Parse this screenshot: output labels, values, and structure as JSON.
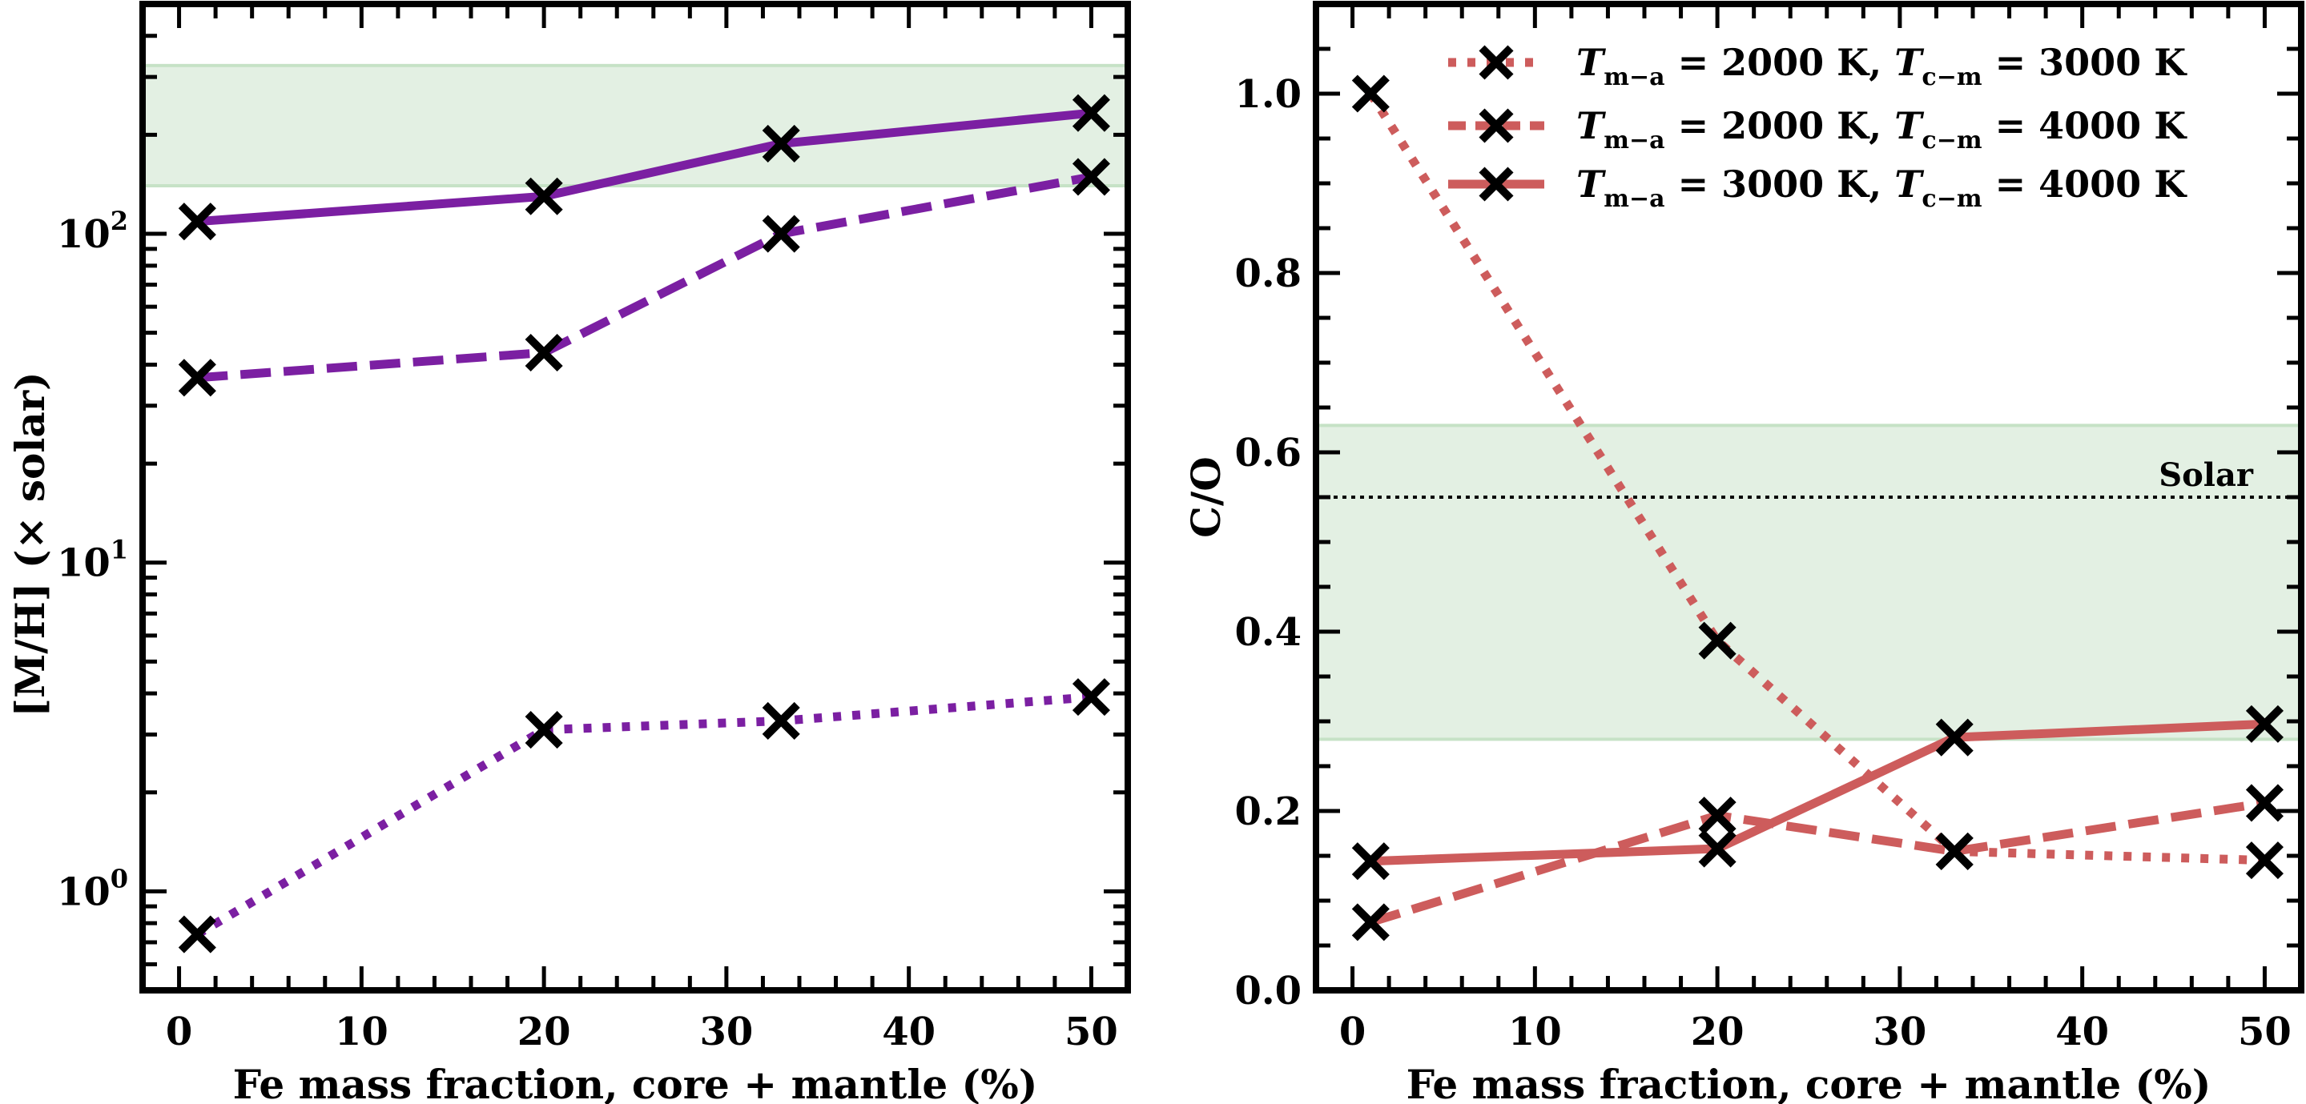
{
  "figure": {
    "marker_color": "#000000",
    "band_color": "#e3f0e3",
    "band_edge_color": "#c6e2c6"
  },
  "chart_data": [
    {
      "type": "line",
      "title": "",
      "xlabel": "Fe mass fraction, core + mantle (%)",
      "ylabel": "[M/H] (× solar)",
      "yscale": "log",
      "xlim": [
        -2,
        52
      ],
      "ylim": [
        0.5,
        500
      ],
      "grid": false,
      "x_ticks": [
        0,
        10,
        20,
        30,
        40,
        50
      ],
      "x_tick_labels": [
        "0",
        "10",
        "20",
        "30",
        "40",
        "50"
      ],
      "y_ticks": [
        1,
        10,
        100
      ],
      "y_tick_labels": [
        {
          "base": "10",
          "exp": "0"
        },
        {
          "base": "10",
          "exp": "1"
        },
        {
          "base": "10",
          "exp": "2"
        }
      ],
      "x": [
        1,
        20,
        33,
        50
      ],
      "shaded_band": {
        "ymin": 140,
        "ymax": 325
      },
      "series": [
        {
          "name": "T_m-a = 2000 K, T_c-m = 3000 K",
          "style": "dotted",
          "color": "#7b1fa2",
          "values": [
            0.74,
            3.1,
            3.3,
            3.9
          ]
        },
        {
          "name": "T_m-a = 2000 K, T_c-m = 4000 K",
          "style": "dashed",
          "color": "#7b1fa2",
          "values": [
            36.5,
            43.5,
            100,
            149
          ]
        },
        {
          "name": "T_m-a = 3000 K, T_c-m = 4000 K",
          "style": "solid",
          "color": "#7b1fa2",
          "values": [
            109,
            130,
            188,
            233
          ]
        }
      ]
    },
    {
      "type": "line",
      "title": "",
      "xlabel": "Fe mass fraction, core + mantle (%)",
      "ylabel": "C/O",
      "yscale": "linear",
      "xlim": [
        -2,
        52
      ],
      "ylim": [
        0,
        1.1
      ],
      "grid": false,
      "x_ticks": [
        0,
        10,
        20,
        30,
        40,
        50
      ],
      "x_tick_labels": [
        "0",
        "10",
        "20",
        "30",
        "40",
        "50"
      ],
      "y_ticks": [
        0,
        0.2,
        0.4,
        0.6,
        0.8,
        1.0
      ],
      "y_tick_labels": [
        "0.0",
        "0.2",
        "0.4",
        "0.6",
        "0.8",
        "1.0"
      ],
      "x": [
        1,
        20,
        33,
        50
      ],
      "shaded_band": {
        "ymin": 0.28,
        "ymax": 0.63
      },
      "reference_line": {
        "y": 0.55,
        "label": "Solar",
        "style": "dotted",
        "color": "#000000"
      },
      "legend": {
        "position": "upper-right",
        "entries": [
          {
            "symbol": "T",
            "sub1": "m−a",
            "text1": " = 2000 K, ",
            "sub2": "c−m",
            "text2": " = 3000 K",
            "style": "dotted"
          },
          {
            "symbol": "T",
            "sub1": "m−a",
            "text1": " = 2000 K, ",
            "sub2": "c−m",
            "text2": " = 4000 K",
            "style": "dashed"
          },
          {
            "symbol": "T",
            "sub1": "m−a",
            "text1": " = 3000 K, ",
            "sub2": "c−m",
            "text2": " = 4000 K",
            "style": "solid"
          }
        ]
      },
      "series": [
        {
          "name": "T_m-a = 2000 K, T_c-m = 3000 K",
          "style": "dotted",
          "color": "#cd5c5c",
          "values": [
            1.0,
            0.39,
            0.155,
            0.145
          ]
        },
        {
          "name": "T_m-a = 2000 K, T_c-m = 4000 K",
          "style": "dashed",
          "color": "#cd5c5c",
          "values": [
            0.076,
            0.195,
            0.155,
            0.209
          ]
        },
        {
          "name": "T_m-a = 3000 K, T_c-m = 4000 K",
          "style": "solid",
          "color": "#cd5c5c",
          "values": [
            0.144,
            0.158,
            0.282,
            0.297
          ]
        }
      ]
    }
  ]
}
